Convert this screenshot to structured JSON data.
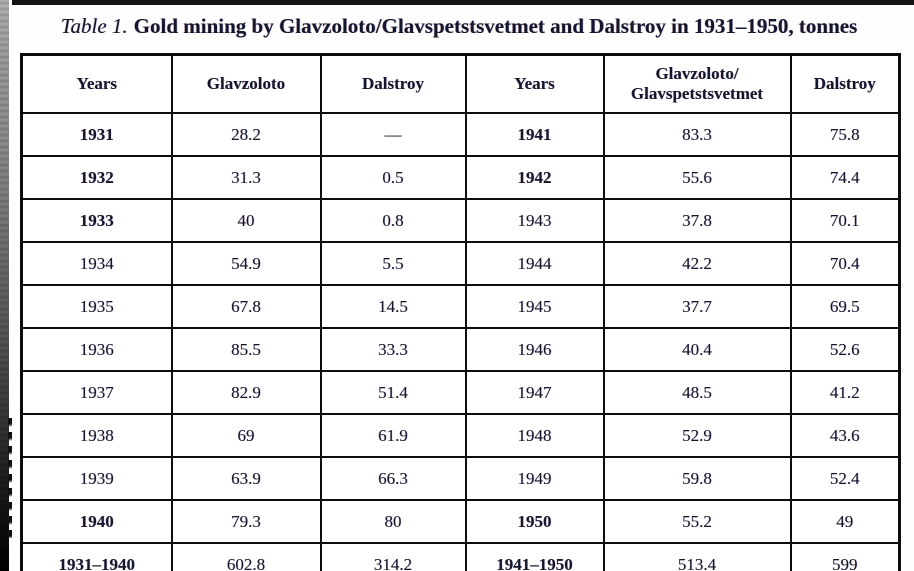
{
  "caption": {
    "label": "Table 1.",
    "text": "Gold mining by Glavzoloto/Glavspetstsvetmet and Dalstroy in 1931–1950, tonnes"
  },
  "table": {
    "headers": [
      "Years",
      "Glavzoloto",
      "Dalstroy",
      "Years",
      "Glavzoloto/ Glavspetstsvetmet",
      "Dalstroy"
    ],
    "rows": [
      {
        "cells": [
          "1931",
          "28.2",
          "—",
          "1941",
          "83.3",
          "75.8"
        ],
        "bold": [
          true,
          false,
          false,
          true,
          false,
          false
        ]
      },
      {
        "cells": [
          "1932",
          "31.3",
          "0.5",
          "1942",
          "55.6",
          "74.4"
        ],
        "bold": [
          true,
          false,
          false,
          true,
          false,
          false
        ]
      },
      {
        "cells": [
          "1933",
          "40",
          "0.8",
          "1943",
          "37.8",
          "70.1"
        ],
        "bold": [
          true,
          false,
          false,
          false,
          false,
          false
        ]
      },
      {
        "cells": [
          "1934",
          "54.9",
          "5.5",
          "1944",
          "42.2",
          "70.4"
        ],
        "bold": [
          false,
          false,
          false,
          false,
          false,
          false
        ]
      },
      {
        "cells": [
          "1935",
          "67.8",
          "14.5",
          "1945",
          "37.7",
          "69.5"
        ],
        "bold": [
          false,
          false,
          false,
          false,
          false,
          false
        ]
      },
      {
        "cells": [
          "1936",
          "85.5",
          "33.3",
          "1946",
          "40.4",
          "52.6"
        ],
        "bold": [
          false,
          false,
          false,
          false,
          false,
          false
        ]
      },
      {
        "cells": [
          "1937",
          "82.9",
          "51.4",
          "1947",
          "48.5",
          "41.2"
        ],
        "bold": [
          false,
          false,
          false,
          false,
          false,
          false
        ]
      },
      {
        "cells": [
          "1938",
          "69",
          "61.9",
          "1948",
          "52.9",
          "43.6"
        ],
        "bold": [
          false,
          false,
          false,
          false,
          false,
          false
        ]
      },
      {
        "cells": [
          "1939",
          "63.9",
          "66.3",
          "1949",
          "59.8",
          "52.4"
        ],
        "bold": [
          false,
          false,
          false,
          false,
          false,
          false
        ]
      },
      {
        "cells": [
          "1940",
          "79.3",
          "80",
          "1950",
          "55.2",
          "49"
        ],
        "bold": [
          true,
          false,
          false,
          true,
          false,
          false
        ]
      },
      {
        "cells": [
          "1931–1940",
          "602.8",
          "314.2",
          "1941–1950",
          "513.4",
          "599"
        ],
        "bold": [
          true,
          false,
          false,
          true,
          false,
          false
        ]
      }
    ]
  },
  "colors": {
    "ink": "#15152c",
    "border": "#0d0d0d",
    "scan_edge": "#3a3a3a",
    "background": "#fefefe"
  }
}
